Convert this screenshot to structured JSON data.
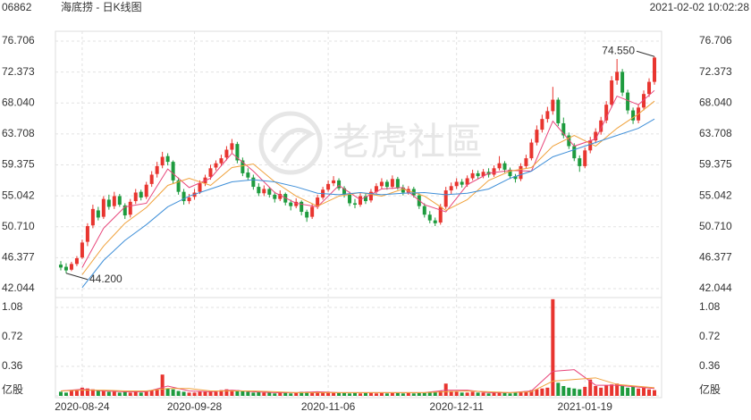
{
  "header": {
    "code": "06862",
    "title": "海底捞 - 日K线图",
    "time": "2021-02-02 10:02:28"
  },
  "watermark": "老虎社區",
  "chart_data": {
    "type": "candlestick",
    "categories": [
      null,
      null,
      null,
      null,
      "2020-08-24",
      null,
      null,
      null,
      null,
      null,
      null,
      null,
      null,
      null,
      null,
      null,
      null,
      null,
      null,
      null,
      null,
      null,
      null,
      null,
      null,
      "2020-09-28",
      null,
      null,
      null,
      null,
      null,
      null,
      null,
      null,
      null,
      null,
      null,
      null,
      null,
      null,
      null,
      null,
      null,
      null,
      null,
      null,
      null,
      null,
      null,
      null,
      "2020-11-06",
      null,
      null,
      null,
      null,
      null,
      null,
      null,
      null,
      null,
      null,
      null,
      null,
      null,
      null,
      null,
      null,
      null,
      null,
      null,
      null,
      null,
      null,
      null,
      "2020-12-11",
      null,
      null,
      null,
      null,
      null,
      null,
      null,
      null,
      null,
      null,
      null,
      null,
      null,
      null,
      null,
      null,
      null,
      null,
      null,
      null,
      null,
      null,
      null,
      "2021-01-19",
      null,
      null,
      null,
      null,
      null,
      null,
      null,
      null,
      null,
      null,
      null,
      null,
      null
    ],
    "ohlc": [
      [
        45.4,
        45.9,
        44.6,
        45.0
      ],
      [
        45.1,
        45.6,
        44.2,
        44.6
      ],
      [
        44.7,
        45.8,
        44.5,
        45.5
      ],
      [
        45.5,
        46.6,
        45.2,
        46.3
      ],
      [
        46.4,
        48.9,
        46.2,
        48.5
      ],
      [
        48.6,
        51.2,
        48.0,
        50.8
      ],
      [
        50.9,
        53.8,
        50.5,
        53.2
      ],
      [
        53.0,
        53.5,
        51.6,
        52.0
      ],
      [
        52.1,
        55.0,
        51.8,
        54.6
      ],
      [
        54.5,
        55.2,
        53.1,
        53.5
      ],
      [
        53.6,
        55.6,
        53.2,
        55.0
      ],
      [
        55.0,
        55.3,
        53.5,
        53.8
      ],
      [
        53.7,
        54.0,
        51.8,
        52.3
      ],
      [
        52.4,
        54.6,
        52.0,
        54.2
      ],
      [
        54.3,
        56.0,
        53.9,
        55.5
      ],
      [
        55.6,
        55.9,
        54.4,
        54.8
      ],
      [
        54.9,
        57.0,
        54.6,
        56.6
      ],
      [
        56.7,
        58.5,
        56.3,
        58.0
      ],
      [
        58.1,
        59.8,
        57.6,
        59.2
      ],
      [
        59.3,
        61.2,
        58.9,
        60.5
      ],
      [
        60.6,
        61.0,
        59.3,
        59.8
      ],
      [
        59.8,
        60.0,
        56.8,
        57.2
      ],
      [
        57.2,
        57.6,
        55.2,
        55.6
      ],
      [
        55.6,
        56.0,
        53.8,
        54.3
      ],
      [
        54.3,
        55.3,
        53.9,
        54.8
      ],
      [
        54.9,
        56.0,
        54.5,
        55.5
      ],
      [
        55.6,
        57.2,
        55.3,
        56.8
      ],
      [
        56.8,
        58.0,
        56.4,
        57.6
      ],
      [
        57.7,
        59.4,
        57.3,
        58.9
      ],
      [
        59.0,
        60.0,
        58.6,
        59.6
      ],
      [
        59.6,
        60.8,
        59.2,
        60.3
      ],
      [
        60.4,
        62.0,
        60.0,
        61.5
      ],
      [
        61.5,
        63.0,
        61.0,
        62.4
      ],
      [
        62.3,
        62.6,
        59.6,
        60.0
      ],
      [
        60.0,
        60.4,
        57.8,
        58.2
      ],
      [
        58.3,
        58.9,
        57.2,
        57.6
      ],
      [
        57.6,
        58.0,
        55.9,
        56.3
      ],
      [
        56.3,
        56.8,
        55.0,
        55.4
      ],
      [
        55.4,
        56.5,
        55.0,
        56.0
      ],
      [
        56.0,
        56.3,
        54.8,
        55.2
      ],
      [
        55.2,
        55.6,
        54.1,
        54.6
      ],
      [
        54.6,
        55.8,
        54.3,
        55.3
      ],
      [
        55.3,
        55.5,
        53.7,
        54.1
      ],
      [
        54.1,
        54.5,
        53.0,
        53.6
      ],
      [
        53.6,
        54.7,
        53.3,
        54.2
      ],
      [
        54.2,
        54.4,
        52.3,
        52.8
      ],
      [
        52.8,
        53.1,
        51.4,
        52.0
      ],
      [
        52.1,
        53.9,
        51.8,
        53.5
      ],
      [
        53.5,
        55.2,
        53.2,
        54.8
      ],
      [
        54.8,
        56.3,
        54.5,
        55.9
      ],
      [
        55.9,
        57.2,
        55.6,
        56.7
      ],
      [
        56.8,
        57.8,
        56.4,
        57.2
      ],
      [
        57.2,
        57.5,
        55.8,
        56.1
      ],
      [
        56.1,
        56.4,
        54.8,
        55.2
      ],
      [
        55.2,
        55.6,
        53.6,
        54.0
      ],
      [
        54.0,
        54.6,
        53.3,
        53.8
      ],
      [
        53.8,
        55.4,
        53.5,
        55.0
      ],
      [
        55.0,
        55.3,
        53.9,
        54.3
      ],
      [
        54.4,
        56.0,
        54.1,
        55.6
      ],
      [
        55.6,
        56.8,
        55.3,
        56.4
      ],
      [
        56.4,
        57.5,
        56.0,
        57.0
      ],
      [
        57.0,
        57.3,
        55.9,
        56.3
      ],
      [
        56.3,
        57.9,
        56.0,
        57.4
      ],
      [
        57.4,
        57.7,
        55.9,
        56.2
      ],
      [
        56.2,
        56.6,
        55.1,
        55.5
      ],
      [
        55.5,
        56.4,
        55.2,
        56.0
      ],
      [
        56.0,
        56.3,
        54.8,
        55.1
      ],
      [
        55.1,
        55.4,
        53.2,
        53.6
      ],
      [
        53.6,
        54.0,
        52.0,
        52.4
      ],
      [
        52.4,
        52.9,
        51.2,
        51.6
      ],
      [
        51.6,
        52.0,
        50.8,
        51.2
      ],
      [
        51.3,
        53.9,
        51.0,
        53.5
      ],
      [
        53.5,
        56.3,
        53.2,
        55.8
      ],
      [
        55.8,
        56.9,
        55.3,
        56.4
      ],
      [
        56.4,
        57.5,
        56.0,
        57.0
      ],
      [
        57.0,
        57.4,
        56.2,
        56.6
      ],
      [
        56.6,
        57.9,
        56.3,
        57.5
      ],
      [
        57.5,
        58.7,
        57.2,
        58.2
      ],
      [
        58.2,
        58.6,
        57.4,
        57.8
      ],
      [
        57.8,
        58.8,
        57.5,
        58.4
      ],
      [
        58.4,
        58.9,
        57.6,
        58.0
      ],
      [
        58.0,
        59.3,
        57.7,
        58.9
      ],
      [
        58.9,
        60.6,
        58.6,
        59.6
      ],
      [
        59.6,
        59.9,
        58.3,
        58.7
      ],
      [
        58.7,
        59.0,
        57.4,
        57.8
      ],
      [
        57.8,
        58.1,
        56.9,
        57.4
      ],
      [
        57.4,
        59.6,
        57.1,
        59.2
      ],
      [
        59.2,
        60.8,
        58.9,
        60.3
      ],
      [
        60.3,
        63.0,
        60.0,
        62.5
      ],
      [
        62.5,
        64.9,
        62.1,
        64.3
      ],
      [
        64.3,
        66.4,
        63.9,
        65.8
      ],
      [
        65.8,
        67.5,
        65.3,
        66.9
      ],
      [
        66.9,
        70.3,
        66.4,
        68.5
      ],
      [
        68.5,
        68.8,
        64.8,
        65.2
      ],
      [
        65.2,
        66.0,
        63.1,
        63.5
      ],
      [
        63.5,
        63.9,
        61.6,
        62.0
      ],
      [
        62.0,
        62.4,
        59.9,
        60.3
      ],
      [
        60.3,
        60.7,
        58.4,
        59.2
      ],
      [
        59.2,
        61.8,
        58.9,
        61.4
      ],
      [
        61.4,
        63.3,
        61.0,
        62.8
      ],
      [
        62.8,
        64.5,
        62.4,
        64.0
      ],
      [
        64.0,
        66.1,
        63.6,
        65.6
      ],
      [
        65.6,
        68.3,
        65.2,
        67.8
      ],
      [
        67.8,
        71.8,
        67.4,
        71.2
      ],
      [
        71.2,
        74.2,
        70.6,
        72.4
      ],
      [
        72.4,
        72.8,
        69.0,
        69.5
      ],
      [
        69.5,
        69.9,
        66.5,
        67.0
      ],
      [
        67.0,
        67.4,
        65.1,
        65.6
      ],
      [
        65.6,
        67.9,
        65.2,
        67.4
      ],
      [
        67.4,
        69.8,
        67.0,
        69.3
      ],
      [
        69.3,
        71.5,
        68.9,
        71.0
      ],
      [
        71.0,
        74.55,
        70.6,
        74.4
      ]
    ],
    "up_color": "#e8352f",
    "down_color": "#1e9b3e",
    "ylim": [
      42.044,
      76.706
    ],
    "yticks": [
      42.044,
      46.377,
      {
        "value": 50.71,
        "label": "50.710"
      },
      55.042,
      59.375,
      63.708,
      {
        "value": 68.04,
        "label": "68.040"
      },
      72.373,
      76.706
    ],
    "grid": true,
    "max_label": "74.550",
    "min_label": "44.200",
    "ma_lines": [
      {
        "color": "#e8457a",
        "x": [
          4,
          8,
          12,
          16,
          20,
          24,
          28,
          32,
          36,
          40,
          44,
          48,
          52,
          56,
          60,
          64,
          68,
          72,
          76,
          80,
          84,
          88,
          92,
          96,
          100,
          104,
          108,
          111
        ],
        "values": [
          45.0,
          50.5,
          53.5,
          54.0,
          58.8,
          56.2,
          57.5,
          61.0,
          58.5,
          55.5,
          54.0,
          53.5,
          56.5,
          54.5,
          56.0,
          56.2,
          53.8,
          52.8,
          56.6,
          58.2,
          58.6,
          58.5,
          65.5,
          62.0,
          63.0,
          69.0,
          67.8,
          69.8
        ]
      },
      {
        "color": "#f0a23c",
        "x": [
          4,
          8,
          12,
          16,
          20,
          24,
          28,
          32,
          36,
          40,
          44,
          48,
          52,
          56,
          60,
          64,
          68,
          72,
          76,
          80,
          84,
          88,
          92,
          96,
          100,
          104,
          108,
          111
        ],
        "values": [
          44.0,
          48.0,
          51.2,
          53.4,
          56.5,
          57.5,
          56.5,
          59.0,
          59.5,
          57.0,
          55.0,
          53.6,
          55.0,
          55.5,
          55.0,
          56.0,
          55.0,
          53.0,
          54.5,
          57.2,
          58.5,
          59.0,
          62.0,
          63.5,
          62.0,
          64.5,
          66.5,
          68.3
        ]
      },
      {
        "color": "#3f8fd8",
        "x": [
          4,
          8,
          12,
          16,
          20,
          24,
          28,
          32,
          36,
          40,
          44,
          48,
          52,
          56,
          60,
          64,
          68,
          72,
          76,
          80,
          84,
          88,
          92,
          96,
          100,
          104,
          108,
          111
        ],
        "values": [
          42.2,
          46.0,
          48.8,
          51.0,
          53.5,
          55.0,
          56.0,
          57.0,
          57.3,
          57.0,
          56.3,
          55.4,
          55.2,
          55.5,
          55.2,
          55.4,
          55.5,
          55.2,
          55.4,
          56.0,
          57.5,
          58.5,
          60.5,
          61.5,
          62.5,
          63.5,
          64.5,
          65.8
        ]
      }
    ],
    "volume": {
      "values": [
        0.05,
        0.04,
        0.06,
        0.07,
        0.1,
        0.09,
        0.08,
        0.07,
        0.06,
        0.05,
        0.05,
        0.04,
        0.05,
        0.04,
        0.06,
        0.04,
        0.05,
        0.07,
        0.08,
        0.26,
        0.09,
        0.08,
        0.06,
        0.05,
        0.04,
        0.04,
        0.05,
        0.05,
        0.06,
        0.05,
        0.07,
        0.08,
        0.06,
        0.07,
        0.06,
        0.05,
        0.04,
        0.05,
        0.04,
        0.04,
        0.03,
        0.04,
        0.04,
        0.03,
        0.04,
        0.05,
        0.05,
        0.04,
        0.05,
        0.04,
        0.05,
        0.04,
        0.04,
        0.04,
        0.03,
        0.04,
        0.03,
        0.04,
        0.04,
        0.03,
        0.04,
        0.03,
        0.04,
        0.04,
        0.03,
        0.04,
        0.03,
        0.04,
        0.04,
        0.05,
        0.05,
        0.06,
        0.15,
        0.06,
        0.05,
        0.04,
        0.04,
        0.05,
        0.04,
        0.04,
        0.03,
        0.04,
        0.05,
        0.04,
        0.03,
        0.04,
        0.05,
        0.06,
        0.07,
        0.08,
        0.09,
        0.1,
        1.18,
        0.16,
        0.12,
        0.1,
        0.09,
        0.08,
        0.11,
        0.2,
        0.12,
        0.1,
        0.13,
        0.14,
        0.15,
        0.12,
        0.1,
        0.11,
        0.09,
        0.1,
        0.08,
        0.07
      ],
      "ylim": [
        0,
        1.2
      ],
      "yticks": [
        {
          "value": 0,
          "label": "亿股"
        },
        0.36,
        0.72,
        1.08
      ],
      "lines": [
        {
          "color": "#e8457a",
          "x": [
            0,
            4,
            8,
            12,
            16,
            20,
            24,
            28,
            32,
            36,
            40,
            44,
            48,
            52,
            56,
            60,
            64,
            68,
            72,
            76,
            80,
            84,
            88,
            92,
            96,
            100,
            104,
            111
          ],
          "values": [
            0.06,
            0.08,
            0.06,
            0.05,
            0.05,
            0.12,
            0.06,
            0.05,
            0.07,
            0.05,
            0.04,
            0.04,
            0.05,
            0.04,
            0.04,
            0.04,
            0.04,
            0.04,
            0.07,
            0.07,
            0.04,
            0.04,
            0.06,
            0.3,
            0.32,
            0.13,
            0.13,
            0.09
          ]
        },
        {
          "color": "#f0a23c",
          "x": [
            0,
            4,
            8,
            12,
            16,
            20,
            24,
            28,
            32,
            36,
            40,
            44,
            48,
            52,
            56,
            60,
            64,
            68,
            72,
            76,
            80,
            84,
            88,
            92,
            96,
            100,
            104,
            111
          ],
          "values": [
            0.06,
            0.07,
            0.07,
            0.06,
            0.06,
            0.09,
            0.09,
            0.06,
            0.06,
            0.06,
            0.05,
            0.04,
            0.04,
            0.04,
            0.04,
            0.04,
            0.04,
            0.04,
            0.05,
            0.06,
            0.05,
            0.04,
            0.05,
            0.18,
            0.2,
            0.22,
            0.14,
            0.1
          ]
        }
      ]
    }
  }
}
